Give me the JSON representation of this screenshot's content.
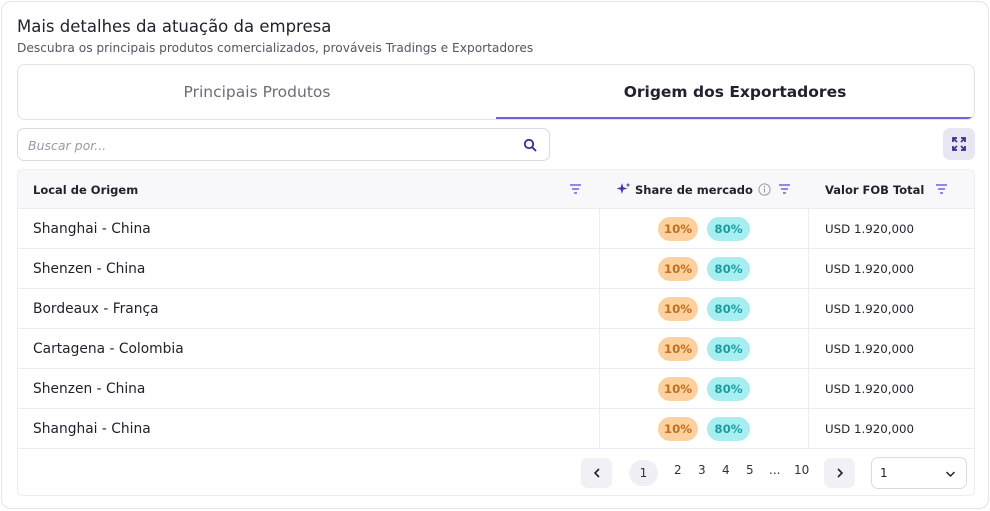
{
  "header": {
    "title": "Mais detalhes da atuação da empresa",
    "subtitle": "Descubra os principais produtos comercializados, prováveis Tradings e Exportadores"
  },
  "tabs": [
    {
      "label": "Principais Produtos",
      "active": false
    },
    {
      "label": "Origem dos Exportadores",
      "active": true
    }
  ],
  "search": {
    "placeholder": "Buscar por...",
    "value": ""
  },
  "table": {
    "columns": [
      "Local de Origem",
      "Share de mercado",
      "Valor FOB Total"
    ],
    "rows": [
      {
        "local": "Shanghai - China",
        "share_a": "10%",
        "share_b": "80%",
        "fob": "USD 1.920,000"
      },
      {
        "local": "Shenzen - China",
        "share_a": "10%",
        "share_b": "80%",
        "fob": "USD 1.920,000"
      },
      {
        "local": "Bordeaux - França",
        "share_a": "10%",
        "share_b": "80%",
        "fob": "USD 1.920,000"
      },
      {
        "local": "Cartagena - Colombia",
        "share_a": "10%",
        "share_b": "80%",
        "fob": "USD 1.920,000"
      },
      {
        "local": "Shenzen - China",
        "share_a": "10%",
        "share_b": "80%",
        "fob": "USD 1.920,000"
      },
      {
        "local": "Shanghai - China",
        "share_a": "10%",
        "share_b": "80%",
        "fob": "USD 1.920,000"
      }
    ]
  },
  "pagination": {
    "pages": [
      "1",
      "2",
      "3",
      "4",
      "5",
      "...",
      "10"
    ],
    "current": "1",
    "page_select": "1"
  },
  "icons": {
    "search": "search-icon",
    "expand": "expand-icon",
    "filter": "filter-icon",
    "sparkle": "sparkle-icon",
    "info": "info-icon",
    "prev": "chevron-left-icon",
    "next": "chevron-right-icon",
    "dropdown": "chevron-down-icon"
  },
  "colors": {
    "accent": "#7c5ce0",
    "badge_orange_bg": "#fdd09f",
    "badge_orange_text": "#c0701c",
    "badge_teal_bg": "#a7eef0",
    "badge_teal_text": "#1b9ea3"
  }
}
